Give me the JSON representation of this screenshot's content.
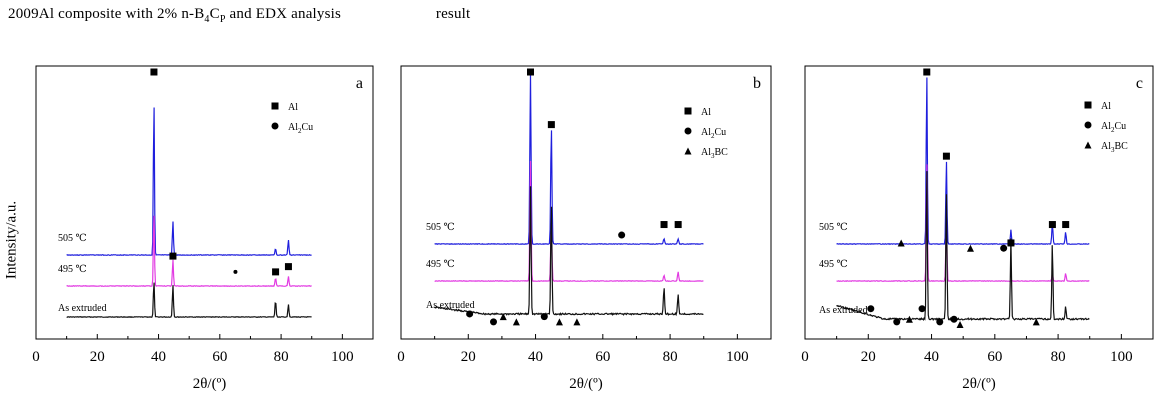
{
  "caption": {
    "prefix": "2009Al composite with 2% n-B",
    "sub1": "4",
    "mid": "C",
    "sub2": "P",
    "suffix": " and EDX analysis                        result"
  },
  "y_axis_label": "Intensity/a.u.",
  "colors": {
    "505": "#1f1fdd",
    "495": "#e23be2",
    "extruded": "#111111",
    "marker": "#000000"
  },
  "chart_data": [
    {
      "type": "line",
      "panel": "a",
      "xlim": [
        0,
        110
      ],
      "xticks": [
        "0",
        "20",
        "40",
        "60",
        "80",
        "100"
      ],
      "xlabel": "2θ/(º)",
      "legend": [
        {
          "label": "Al",
          "marker": "square"
        },
        {
          "label": "Al2Cu",
          "marker": "circle"
        }
      ],
      "series": [
        {
          "name": "505 ℃",
          "x": [
            10,
            38.5,
            44.7,
            65.1,
            78.2,
            82.4,
            90
          ],
          "peaks": [
            {
              "x": 38.5,
              "h": 0.92
            },
            {
              "x": 44.7,
              "h": 0.2
            },
            {
              "x": 78.2,
              "h": 0.04
            },
            {
              "x": 82.4,
              "h": 0.09
            }
          ]
        },
        {
          "name": "495 ℃",
          "x": [
            10,
            90
          ],
          "peaks": [
            {
              "x": 38.5,
              "h": 0.62
            },
            {
              "x": 44.7,
              "h": 0.22
            },
            {
              "x": 78.2,
              "h": 0.07
            },
            {
              "x": 82.4,
              "h": 0.08
            }
          ]
        },
        {
          "name": "As extruded",
          "x": [
            10,
            90
          ],
          "peaks": [
            {
              "x": 38.5,
              "h": 0.28
            },
            {
              "x": 44.7,
              "h": 0.25
            },
            {
              "x": 78.2,
              "h": 0.13
            },
            {
              "x": 82.4,
              "h": 0.1
            }
          ]
        }
      ],
      "markers": [
        {
          "x": 38.5,
          "type": "square",
          "level": 1.0
        },
        {
          "x": 44.7,
          "type": "square",
          "level": 0.3
        },
        {
          "x": 65.1,
          "type": "dot",
          "level": 0.24
        },
        {
          "x": 78.2,
          "type": "square",
          "level": 0.24
        },
        {
          "x": 82.4,
          "type": "square",
          "level": 0.26
        }
      ]
    },
    {
      "type": "line",
      "panel": "b",
      "xlim": [
        0,
        110
      ],
      "xticks": [
        "0",
        "20",
        "40",
        "60",
        "80",
        "100"
      ],
      "xlabel": "2θ/(º)",
      "legend": [
        {
          "label": "Al",
          "marker": "square"
        },
        {
          "label": "Al2Cu",
          "marker": "circle"
        },
        {
          "label": "Al3BC",
          "marker": "triangle"
        }
      ],
      "series": [
        {
          "name": "505 ℃",
          "peaks": [
            {
              "x": 38.5,
              "h": 0.98
            },
            {
              "x": 44.7,
              "h": 0.68
            },
            {
              "x": 78.2,
              "h": 0.03
            },
            {
              "x": 82.4,
              "h": 0.03
            }
          ]
        },
        {
          "name": "495 ℃",
          "peaks": [
            {
              "x": 38.5,
              "h": 0.8
            },
            {
              "x": 44.7,
              "h": 0.4
            },
            {
              "x": 78.2,
              "h": 0.04
            },
            {
              "x": 82.4,
              "h": 0.06
            }
          ]
        },
        {
          "name": "As extruded",
          "peaks": [
            {
              "x": 38.5,
              "h": 0.8
            },
            {
              "x": 44.7,
              "h": 0.7
            },
            {
              "x": 78.2,
              "h": 0.17
            },
            {
              "x": 82.4,
              "h": 0.12
            }
          ]
        }
      ],
      "markers": [
        {
          "x": 38.5,
          "type": "square",
          "level": 1.0
        },
        {
          "x": 44.7,
          "type": "square",
          "level": 0.8
        },
        {
          "x": 65.6,
          "type": "circle",
          "level": 0.38
        },
        {
          "x": 78.2,
          "type": "square",
          "level": 0.42
        },
        {
          "x": 82.4,
          "type": "square",
          "level": 0.42
        },
        {
          "x": 20.4,
          "type": "circle",
          "level": 0.08
        },
        {
          "x": 27.5,
          "type": "circle",
          "level": 0.05
        },
        {
          "x": 30.4,
          "type": "triangle",
          "level": 0.07
        },
        {
          "x": 34.3,
          "type": "triangle",
          "level": 0.05
        },
        {
          "x": 42.6,
          "type": "circle",
          "level": 0.07
        },
        {
          "x": 47.1,
          "type": "triangle",
          "level": 0.05
        },
        {
          "x": 52.3,
          "type": "triangle",
          "level": 0.05
        }
      ]
    },
    {
      "type": "line",
      "panel": "c",
      "xlim": [
        0,
        110
      ],
      "xticks": [
        "0",
        "20",
        "40",
        "60",
        "80",
        "100"
      ],
      "xlabel": "2θ/(º)",
      "legend": [
        {
          "label": "Al",
          "marker": "square"
        },
        {
          "label": "Al2Cu",
          "marker": "circle"
        },
        {
          "label": "Al3BC",
          "marker": "triangle"
        }
      ],
      "series": [
        {
          "name": "505 ℃",
          "peaks": [
            {
              "x": 38.5,
              "h": 0.98
            },
            {
              "x": 44.7,
              "h": 0.48
            },
            {
              "x": 65.1,
              "h": 0.08
            },
            {
              "x": 78.2,
              "h": 0.12
            },
            {
              "x": 82.4,
              "h": 0.07
            }
          ]
        },
        {
          "name": "495 ℃",
          "peaks": [
            {
              "x": 38.5,
              "h": 0.8
            },
            {
              "x": 44.7,
              "h": 0.4
            },
            {
              "x": 78.2,
              "h": 0.05
            },
            {
              "x": 82.4,
              "h": 0.05
            }
          ]
        },
        {
          "name": "As extruded",
          "peaks": [
            {
              "x": 38.5,
              "h": 0.95
            },
            {
              "x": 44.7,
              "h": 0.8
            },
            {
              "x": 65.1,
              "h": 0.5
            },
            {
              "x": 78.2,
              "h": 0.48
            },
            {
              "x": 82.4,
              "h": 0.08
            }
          ]
        }
      ],
      "markers": [
        {
          "x": 38.5,
          "type": "square",
          "level": 1.0
        },
        {
          "x": 44.7,
          "type": "square",
          "level": 0.68
        },
        {
          "x": 30.4,
          "type": "triangle",
          "level": 0.35
        },
        {
          "x": 52.3,
          "type": "triangle",
          "level": 0.33
        },
        {
          "x": 62.8,
          "type": "circle",
          "level": 0.33
        },
        {
          "x": 65.1,
          "type": "square",
          "level": 0.35
        },
        {
          "x": 78.2,
          "type": "square",
          "level": 0.42
        },
        {
          "x": 82.4,
          "type": "square",
          "level": 0.42
        },
        {
          "x": 20.8,
          "type": "circle",
          "level": 0.1
        },
        {
          "x": 29.0,
          "type": "circle",
          "level": 0.05
        },
        {
          "x": 33.0,
          "type": "triangle",
          "level": 0.06
        },
        {
          "x": 37.0,
          "type": "circle",
          "level": 0.1
        },
        {
          "x": 42.6,
          "type": "circle",
          "level": 0.05
        },
        {
          "x": 47.1,
          "type": "circle",
          "level": 0.06
        },
        {
          "x": 49.0,
          "type": "triangle",
          "level": 0.04
        },
        {
          "x": 73.1,
          "type": "triangle",
          "level": 0.05
        }
      ]
    }
  ]
}
